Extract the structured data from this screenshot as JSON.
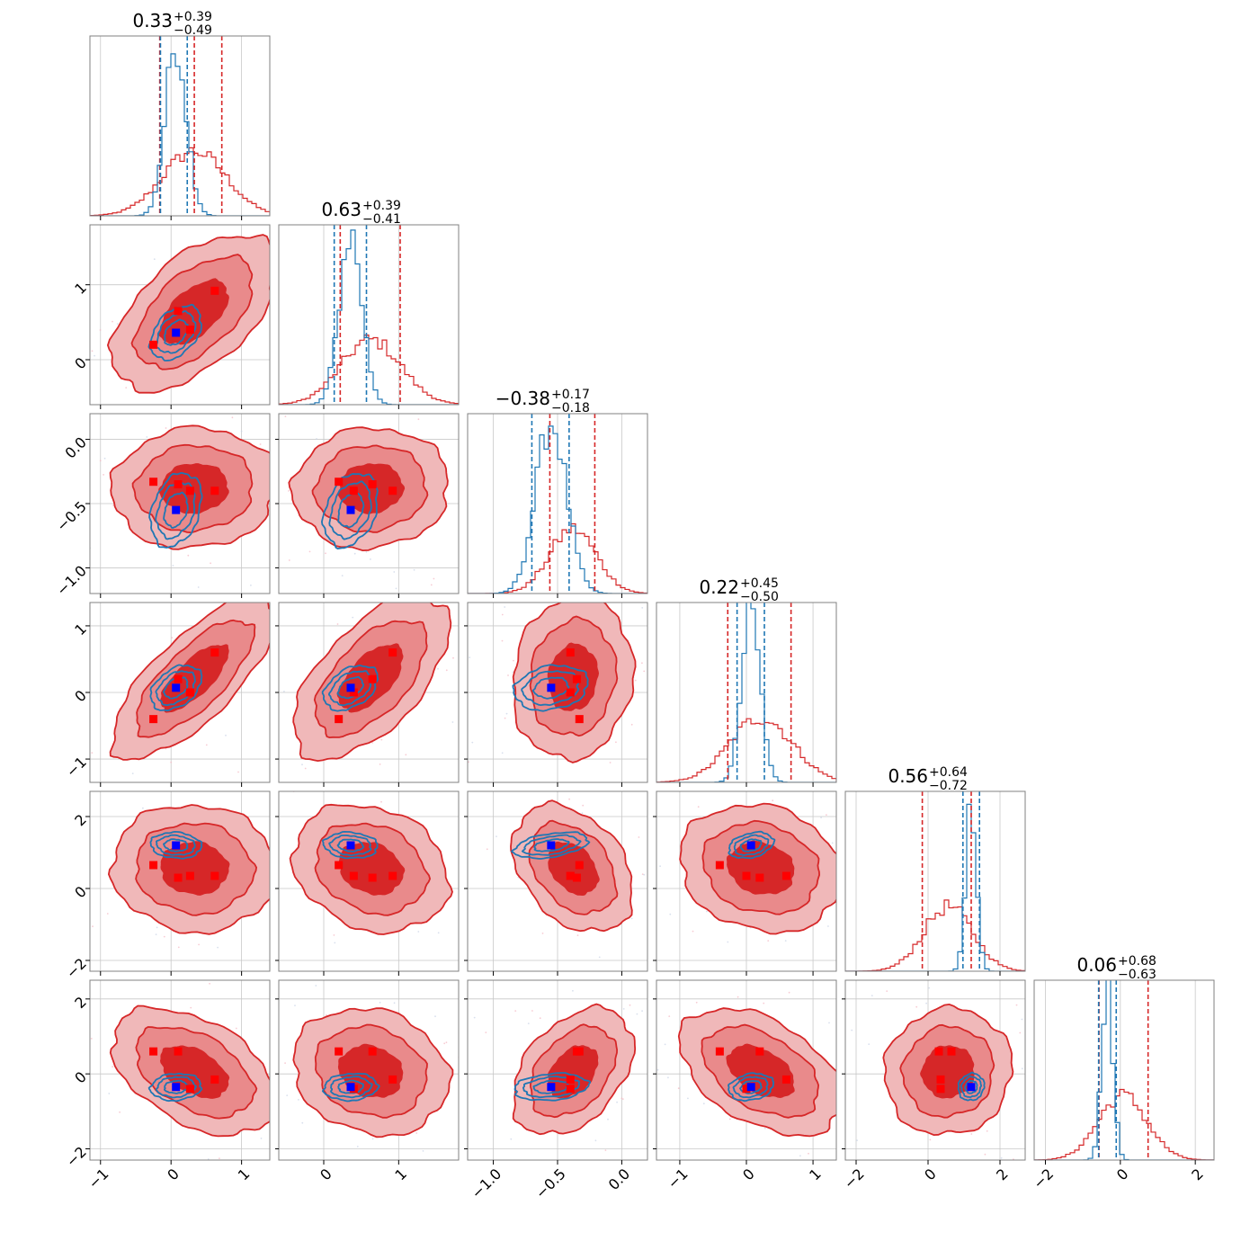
{
  "figure": {
    "type": "corner",
    "n_params": 6,
    "colors": {
      "red_line": "#d62728",
      "red_fill_outer": "#f0b8b9",
      "red_fill_mid": "#e98a8b",
      "red_fill_inner": "#d62728",
      "blue_line": "#1f77b4",
      "blue_marker": "#0000ff",
      "red_marker": "#ff0000",
      "grid": "#c8c8c8",
      "axes": "#808080"
    }
  },
  "chart_data": {
    "type": "corner",
    "params": [
      {
        "range": [
          -1.15,
          1.4
        ],
        "ticks": [
          -1,
          0,
          1
        ],
        "tick_labels": [
          "−1",
          "0",
          "1"
        ],
        "title": {
          "main": "0.33",
          "up": "+0.39",
          "down": "−0.49"
        },
        "red": {
          "mu": 0.33,
          "sd": 0.45,
          "q": [
            -0.16,
            0.33,
            0.72
          ]
        },
        "blue": {
          "mu": 0.07,
          "sd": 0.15,
          "q": [
            -0.15,
            0.23
          ]
        }
      },
      {
        "range": [
          -0.6,
          1.8
        ],
        "ticks": [
          0,
          1
        ],
        "tick_labels": [
          "0",
          "1"
        ],
        "title": {
          "main": "0.63",
          "up": "+0.39",
          "down": "−0.41"
        },
        "red": {
          "mu": 0.63,
          "sd": 0.4,
          "q": [
            0.22,
            1.02
          ]
        },
        "blue": {
          "mu": 0.36,
          "sd": 0.15,
          "q": [
            0.14,
            0.57
          ]
        }
      },
      {
        "range": [
          -1.2,
          0.2
        ],
        "ticks": [
          -1.0,
          -0.5,
          0.0
        ],
        "tick_labels": [
          "−1.0",
          "−0.5",
          "0.0"
        ],
        "title": {
          "main": "−0.38",
          "up": "+0.17",
          "down": "−0.18"
        },
        "red": {
          "mu": -0.38,
          "sd": 0.18,
          "q": [
            -0.56,
            -0.21
          ]
        },
        "blue": {
          "mu": -0.55,
          "sd": 0.12,
          "q": [
            -0.7,
            -0.41
          ]
        }
      },
      {
        "range": [
          -1.35,
          1.35
        ],
        "ticks": [
          -1,
          0,
          1
        ],
        "tick_labels": [
          "−1",
          "0",
          "1"
        ],
        "title": {
          "main": "0.22",
          "up": "+0.45",
          "down": "−0.50"
        },
        "red": {
          "mu": 0.22,
          "sd": 0.47,
          "q": [
            -0.28,
            0.67
          ]
        },
        "blue": {
          "mu": 0.07,
          "sd": 0.14,
          "q": [
            -0.14,
            0.27
          ]
        }
      },
      {
        "range": [
          -2.3,
          2.7
        ],
        "ticks": [
          -2,
          0,
          2
        ],
        "tick_labels": [
          "−2",
          "0",
          "2"
        ],
        "title": {
          "main": "0.56",
          "up": "+0.64",
          "down": "−0.72"
        },
        "red": {
          "mu": 0.56,
          "sd": 0.68,
          "q": [
            -0.16,
            1.2
          ]
        },
        "blue": {
          "mu": 1.2,
          "sd": 0.15,
          "q": [
            0.97,
            1.43
          ]
        }
      },
      {
        "range": [
          -2.3,
          2.5
        ],
        "ticks": [
          -2,
          0,
          2
        ],
        "tick_labels": [
          "−2",
          "0",
          "2"
        ],
        "title": {
          "main": "0.06",
          "up": "+0.68",
          "down": "−0.63"
        },
        "red": {
          "mu": 0.06,
          "sd": 0.65,
          "q": [
            -0.57,
            0.74
          ]
        },
        "blue": {
          "mu": -0.35,
          "sd": 0.15,
          "q": [
            -0.58,
            -0.11
          ]
        }
      }
    ],
    "markers": {
      "blue": [
        0.07,
        0.36,
        -0.55,
        0.07,
        1.2,
        -0.35
      ],
      "red": [
        [
          0.62,
          0.92,
          -0.4,
          0.6,
          0.35,
          -0.15
        ],
        [
          0.1,
          0.65,
          -0.35,
          0.2,
          0.3,
          0.6
        ],
        [
          -0.25,
          0.2,
          -0.33,
          -0.4,
          0.65,
          0.6
        ],
        [
          0.27,
          0.4,
          -0.4,
          0.0,
          0.35,
          -0.4
        ]
      ]
    },
    "correlations": [
      [
        1,
        0.55,
        0.05,
        0.75,
        -0.05,
        -0.45
      ],
      [
        0.55,
        1,
        0.05,
        0.6,
        -0.2,
        -0.15
      ],
      [
        0.05,
        0.05,
        1,
        0.1,
        -0.35,
        0.4
      ],
      [
        0.75,
        0.6,
        0.1,
        1,
        -0.15,
        -0.45
      ],
      [
        -0.05,
        -0.2,
        -0.35,
        -0.15,
        1,
        0.05
      ],
      [
        -0.45,
        -0.15,
        0.4,
        -0.45,
        0.05,
        1
      ]
    ],
    "blue_correlations": [
      [
        1,
        0.4,
        0.3,
        0.4,
        -0.1,
        0.1
      ],
      [
        0.4,
        1,
        0.3,
        0.4,
        -0.1,
        0.1
      ],
      [
        0.3,
        0.3,
        1,
        0.2,
        0.4,
        0.2
      ],
      [
        0.4,
        0.4,
        0.2,
        1,
        0.3,
        0.2
      ],
      [
        -0.1,
        -0.1,
        0.4,
        0.3,
        1,
        0.1
      ],
      [
        0.1,
        0.1,
        0.2,
        0.2,
        0.1,
        1
      ]
    ],
    "grid": true
  }
}
